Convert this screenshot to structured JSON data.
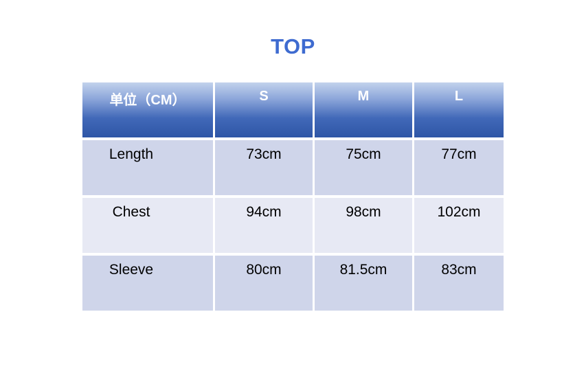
{
  "page": {
    "title": "TOP"
  },
  "colors": {
    "title": "#3E6BD0",
    "header_gradient_top": "#C2D2EC",
    "header_gradient_bottom": "#2E56A6",
    "header_text": "#FFFFFF",
    "row_odd": "#CFD5EA",
    "row_even": "#E7E9F4",
    "body_text": "#000000",
    "background": "#FFFFFF"
  },
  "table": {
    "columns": [
      "单位（CM）",
      "S",
      "M",
      "L"
    ],
    "rows": [
      {
        "label": "Length",
        "values": [
          "73cm",
          "75cm",
          "77cm"
        ]
      },
      {
        "label": "Chest",
        "values": [
          "94cm",
          "98cm",
          "102cm"
        ]
      },
      {
        "label": "Sleeve",
        "values": [
          "80cm",
          "81.5cm",
          "83cm"
        ]
      }
    ]
  }
}
